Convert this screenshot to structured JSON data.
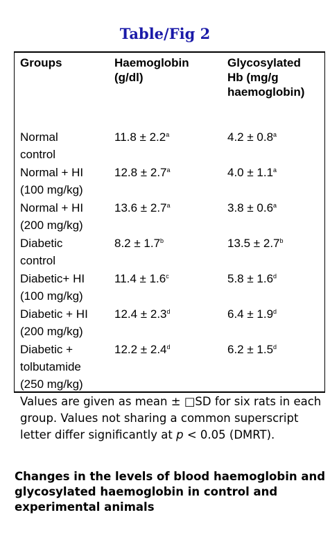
{
  "title": "Table/Fig 2",
  "table": {
    "headers": {
      "groups": "Groups",
      "haemoglobin": [
        "Haemoglobin",
        "(g/dl)"
      ],
      "glycosylated": [
        "Glycosylated",
        "Hb (mg/g",
        "haemoglobin)"
      ]
    },
    "rows": [
      {
        "group": [
          "Normal",
          "control"
        ],
        "hb": "11.8 ± 2.2",
        "hb_sup": "a",
        "ghb": "4.2 ± 0.8",
        "ghb_sup": "a"
      },
      {
        "group": [
          "Normal + HI",
          "(100 mg/kg)"
        ],
        "hb": "12.8 ± 2.7",
        "hb_sup": "a",
        "ghb": "4.0 ± 1.1",
        "ghb_sup": "a"
      },
      {
        "group": [
          "Normal + HI",
          "(200 mg/kg)"
        ],
        "hb": "13.6 ± 2.7",
        "hb_sup": "a",
        "ghb": "3.8 ± 0.6",
        "ghb_sup": "a"
      },
      {
        "group": [
          "Diabetic",
          "control"
        ],
        "hb": "8.2 ± 1.7",
        "hb_sup": "b",
        "ghb": "13.5 ± 2.7",
        "ghb_sup": "b"
      },
      {
        "group": [
          "Diabetic+ HI",
          "(100 mg/kg)"
        ],
        "hb": "11.4 ± 1.6",
        "hb_sup": "c",
        "ghb": "5.8 ± 1.6",
        "ghb_sup": "d"
      },
      {
        "group": [
          "Diabetic + HI",
          "(200 mg/kg)"
        ],
        "hb": "12.4 ± 2.3",
        "hb_sup": "d",
        "ghb": "6.4 ± 1.9",
        "ghb_sup": "d"
      },
      {
        "group": [
          "Diabetic +",
          "tolbutamide",
          "(250 mg/kg)"
        ],
        "hb": "12.2 ± 2.4",
        "hb_sup": "d",
        "ghb": "6.2 ± 1.5",
        "ghb_sup": "d"
      }
    ]
  },
  "note": {
    "before_p": "Values are given as mean ± □SD for six rats in each group. Values not sharing a common superscript letter differ significantly at ",
    "p": "p",
    "after_p": " < 0.05 (DMRT)."
  },
  "caption": "Changes in the levels of blood haemoglobin and glycosylated haemoglobin in control and experimental animals"
}
